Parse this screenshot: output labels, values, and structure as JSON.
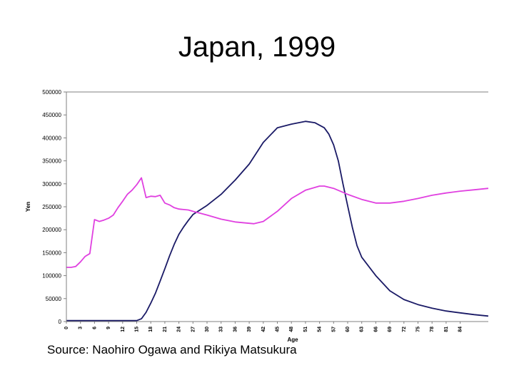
{
  "slide": {
    "title": "Japan, 1999",
    "source": "Source: Naohiro Ogawa and Rikiya Matsukura"
  },
  "chart_data": {
    "type": "line",
    "xlabel": "Age",
    "ylabel": "Yen",
    "xlim": [
      0,
      90
    ],
    "ylim": [
      0,
      500000
    ],
    "y_ticks": [
      0,
      50000,
      100000,
      150000,
      200000,
      250000,
      300000,
      350000,
      400000,
      450000,
      500000
    ],
    "x_ticks": [
      0,
      3,
      6,
      9,
      12,
      15,
      18,
      21,
      24,
      27,
      30,
      33,
      36,
      39,
      42,
      45,
      48,
      51,
      54,
      57,
      60,
      63,
      66,
      69,
      72,
      75,
      78,
      81,
      84
    ],
    "x_tick_labels": [
      "0",
      "3",
      "6",
      "9",
      "12",
      "15",
      "18",
      "21",
      "24",
      "27",
      "30",
      "33",
      "36",
      "39",
      "42",
      "45",
      "48",
      "51",
      "54",
      "57",
      "60",
      "63",
      "66",
      "69",
      "72",
      "75",
      "78",
      "81",
      "84"
    ],
    "grid": false,
    "series": [
      {
        "color": "#1a1a66",
        "x": [
          0,
          15,
          16,
          17,
          18,
          19,
          20,
          21,
          22,
          23,
          24,
          25,
          26,
          27,
          30,
          33,
          36,
          39,
          42,
          45,
          48,
          51,
          53,
          55,
          56,
          57,
          58,
          59,
          60,
          61,
          62,
          63,
          66,
          69,
          72,
          75,
          78,
          81,
          84,
          87,
          90
        ],
        "y": [
          2000,
          2000,
          6000,
          20000,
          40000,
          62000,
          88000,
          115000,
          143000,
          168000,
          190000,
          206000,
          220000,
          233000,
          253000,
          277000,
          308000,
          343000,
          390000,
          422000,
          430000,
          436000,
          433000,
          422000,
          408000,
          385000,
          350000,
          300000,
          252000,
          205000,
          165000,
          140000,
          100000,
          67000,
          48000,
          37000,
          29000,
          23000,
          19000,
          15000,
          12000
        ]
      },
      {
        "color": "#e040e0",
        "x": [
          0,
          1,
          2,
          3,
          4,
          5,
          6,
          7,
          8,
          9,
          10,
          11,
          12,
          13,
          14,
          15,
          16,
          17,
          18,
          19,
          20,
          21,
          22,
          23,
          24,
          25,
          26,
          27,
          30,
          33,
          36,
          39,
          40,
          42,
          45,
          48,
          51,
          54,
          55,
          57,
          60,
          63,
          66,
          69,
          72,
          75,
          78,
          81,
          84,
          87,
          90
        ],
        "y": [
          118000,
          118000,
          120000,
          130000,
          142000,
          148000,
          222000,
          218000,
          221000,
          225000,
          232000,
          248000,
          262000,
          277000,
          286000,
          298000,
          313000,
          270000,
          273000,
          272000,
          275000,
          258000,
          254000,
          248000,
          245000,
          244000,
          243000,
          240000,
          232000,
          223000,
          217000,
          214000,
          213000,
          218000,
          240000,
          268000,
          286000,
          295000,
          295000,
          290000,
          277000,
          266000,
          258000,
          258000,
          262000,
          268000,
          275000,
          280000,
          284000,
          287000,
          290000
        ]
      }
    ]
  }
}
